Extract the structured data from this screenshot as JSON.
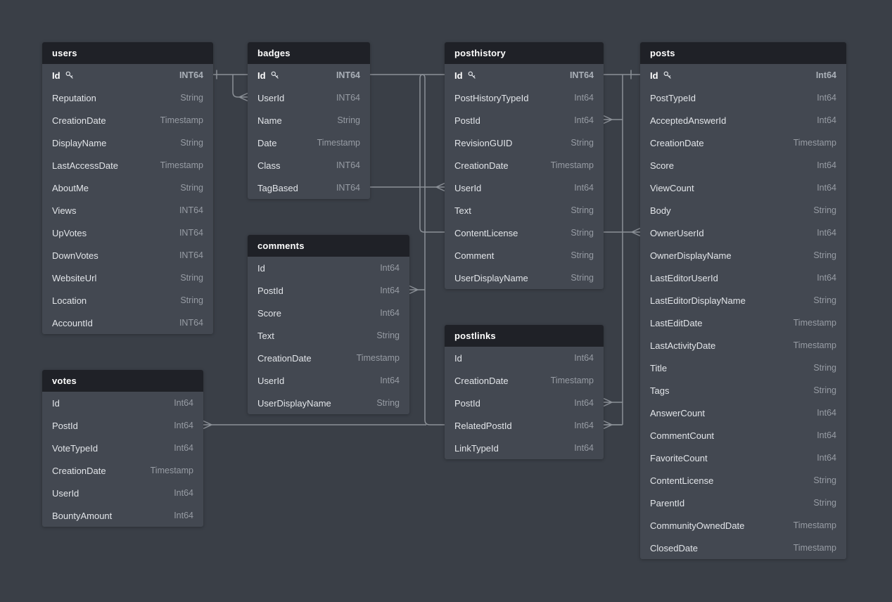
{
  "diagram": {
    "tables": [
      {
        "name": "users",
        "columns": [
          {
            "name": "Id",
            "type": "INT64",
            "pk": true
          },
          {
            "name": "Reputation",
            "type": "String"
          },
          {
            "name": "CreationDate",
            "type": "Timestamp"
          },
          {
            "name": "DisplayName",
            "type": "String"
          },
          {
            "name": "LastAccessDate",
            "type": "Timestamp"
          },
          {
            "name": "AboutMe",
            "type": "String"
          },
          {
            "name": "Views",
            "type": "INT64"
          },
          {
            "name": "UpVotes",
            "type": "INT64"
          },
          {
            "name": "DownVotes",
            "type": "INT64"
          },
          {
            "name": "WebsiteUrl",
            "type": "String"
          },
          {
            "name": "Location",
            "type": "String"
          },
          {
            "name": "AccountId",
            "type": "INT64"
          }
        ]
      },
      {
        "name": "badges",
        "columns": [
          {
            "name": "Id",
            "type": "INT64",
            "pk": true
          },
          {
            "name": "UserId",
            "type": "INT64"
          },
          {
            "name": "Name",
            "type": "String"
          },
          {
            "name": "Date",
            "type": "Timestamp"
          },
          {
            "name": "Class",
            "type": "INT64"
          },
          {
            "name": "TagBased",
            "type": "INT64"
          }
        ]
      },
      {
        "name": "posthistory",
        "columns": [
          {
            "name": "Id",
            "type": "INT64",
            "pk": true
          },
          {
            "name": "PostHistoryTypeId",
            "type": "Int64"
          },
          {
            "name": "PostId",
            "type": "Int64"
          },
          {
            "name": "RevisionGUID",
            "type": "String"
          },
          {
            "name": "CreationDate",
            "type": "Timestamp"
          },
          {
            "name": "UserId",
            "type": "Int64"
          },
          {
            "name": "Text",
            "type": "String"
          },
          {
            "name": "ContentLicense",
            "type": "String"
          },
          {
            "name": "Comment",
            "type": "String"
          },
          {
            "name": "UserDisplayName",
            "type": "String"
          }
        ]
      },
      {
        "name": "posts",
        "columns": [
          {
            "name": "Id",
            "type": "Int64",
            "pk": true
          },
          {
            "name": "PostTypeId",
            "type": "Int64"
          },
          {
            "name": "AcceptedAnswerId",
            "type": "Int64"
          },
          {
            "name": "CreationDate",
            "type": "Timestamp"
          },
          {
            "name": "Score",
            "type": "Int64"
          },
          {
            "name": "ViewCount",
            "type": "Int64"
          },
          {
            "name": "Body",
            "type": "String"
          },
          {
            "name": "OwnerUserId",
            "type": "Int64"
          },
          {
            "name": "OwnerDisplayName",
            "type": "String"
          },
          {
            "name": "LastEditorUserId",
            "type": "Int64"
          },
          {
            "name": "LastEditorDisplayName",
            "type": "String"
          },
          {
            "name": "LastEditDate",
            "type": "Timestamp"
          },
          {
            "name": "LastActivityDate",
            "type": "Timestamp"
          },
          {
            "name": "Title",
            "type": "String"
          },
          {
            "name": "Tags",
            "type": "String"
          },
          {
            "name": "AnswerCount",
            "type": "Int64"
          },
          {
            "name": "CommentCount",
            "type": "Int64"
          },
          {
            "name": "FavoriteCount",
            "type": "Int64"
          },
          {
            "name": "ContentLicense",
            "type": "String"
          },
          {
            "name": "ParentId",
            "type": "String"
          },
          {
            "name": "CommunityOwnedDate",
            "type": "Timestamp"
          },
          {
            "name": "ClosedDate",
            "type": "Timestamp"
          }
        ]
      },
      {
        "name": "comments",
        "columns": [
          {
            "name": "Id",
            "type": "Int64"
          },
          {
            "name": "PostId",
            "type": "Int64"
          },
          {
            "name": "Score",
            "type": "Int64"
          },
          {
            "name": "Text",
            "type": "String"
          },
          {
            "name": "CreationDate",
            "type": "Timestamp"
          },
          {
            "name": "UserId",
            "type": "Int64"
          },
          {
            "name": "UserDisplayName",
            "type": "String"
          }
        ]
      },
      {
        "name": "postlinks",
        "columns": [
          {
            "name": "Id",
            "type": "Int64"
          },
          {
            "name": "CreationDate",
            "type": "Timestamp"
          },
          {
            "name": "PostId",
            "type": "Int64"
          },
          {
            "name": "RelatedPostId",
            "type": "Int64"
          },
          {
            "name": "LinkTypeId",
            "type": "Int64"
          }
        ]
      },
      {
        "name": "votes",
        "columns": [
          {
            "name": "Id",
            "type": "Int64"
          },
          {
            "name": "PostId",
            "type": "Int64"
          },
          {
            "name": "VoteTypeId",
            "type": "Int64"
          },
          {
            "name": "CreationDate",
            "type": "Timestamp"
          },
          {
            "name": "UserId",
            "type": "Int64"
          },
          {
            "name": "BountyAmount",
            "type": "Int64"
          }
        ]
      }
    ],
    "relations": [
      {
        "id": "users-id__badges-userid",
        "from": "users.Id",
        "to": "badges.UserId",
        "from_marker": "one",
        "to_marker": "many"
      },
      {
        "id": "users-id__posthistory-userid",
        "from": "users.Id",
        "to": "posthistory.UserId",
        "to_marker": "many"
      },
      {
        "id": "users-id__posts-owneruserid",
        "from": "users.Id",
        "to": "posts.OwnerUserId",
        "to_marker": "many"
      },
      {
        "id": "posthistory-postid__posts-id",
        "from": "posthistory.PostId",
        "to": "posts.Id",
        "from_marker": "many",
        "to_marker": "one"
      },
      {
        "id": "comments-postid__posts-id",
        "from": "comments.PostId",
        "to": "posts.Id",
        "from_marker": "many"
      },
      {
        "id": "votes-postid__posts-id",
        "from": "votes.PostId",
        "to": "posts.Id",
        "from_marker": "many"
      },
      {
        "id": "postlinks-postid__posts-id",
        "from": "postlinks.PostId",
        "to": "posts.Id",
        "from_marker": "many"
      },
      {
        "id": "postlinks-relatedpostid__posts-id",
        "from": "postlinks.RelatedPostId",
        "to": "posts.Id",
        "from_marker": "many"
      }
    ],
    "colors": {
      "page_bg": "#3a3f47",
      "table_bg": "#434851",
      "header_bg": "#1f2127",
      "name_text": "#e2e5e9",
      "type_text": "#979ca4",
      "line": "#8b9097"
    },
    "icons": {
      "pk": "key-icon"
    }
  }
}
